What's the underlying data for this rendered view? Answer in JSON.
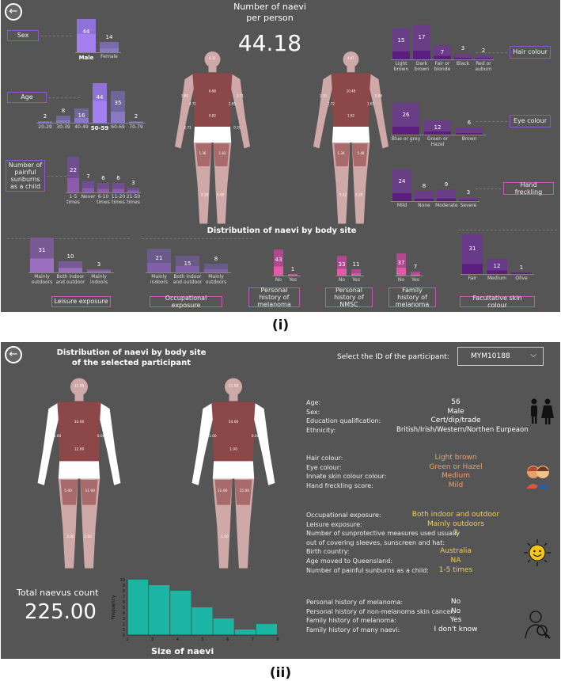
{
  "panel1": {
    "caption": "(i)",
    "title_line1": "Number of naevi",
    "title_line2": "per person",
    "big_number": "44.18",
    "body_site_title": "Distribution of naevi by body site",
    "front_values": [
      "6.11",
      "6.68",
      "4.71",
      "2.65",
      "0.82",
      "1.36",
      "1.83",
      "3.18",
      "4.58",
      "3.80",
      "2.71",
      "2.71",
      "0.31",
      "0.25"
    ],
    "back_values": [
      "4.87",
      "10.48",
      "1.72",
      "1.63",
      "1.62",
      "1.34",
      "5.48",
      "5.32",
      "2.28",
      "2.15",
      "0.06"
    ],
    "sex": {
      "label": "Sex",
      "categories": [
        "Male",
        "Female"
      ],
      "values": [
        44,
        14
      ],
      "selected": "Male"
    },
    "age": {
      "label": "Age",
      "categories": [
        "20-29",
        "30-39",
        "40-49",
        "50-59",
        "60-69",
        "70-79"
      ],
      "values": [
        2,
        8,
        16,
        44,
        35,
        2
      ],
      "selected": "50-59"
    },
    "sunburns": {
      "label": "Number of painful sunburns as a child",
      "categories": [
        "1-5 times",
        "Never",
        "6-10 times",
        "11-20 times",
        "21-50 times"
      ],
      "values": [
        22,
        7,
        6,
        6,
        3
      ]
    },
    "hair": {
      "label": "Hair colour",
      "categories": [
        "Light brown",
        "Dark brown",
        "Fair or blonde",
        "Black",
        "Red or auburn"
      ],
      "values": [
        15,
        17,
        7,
        3,
        2
      ]
    },
    "eye": {
      "label": "Eye colour",
      "categories": [
        "Blue or grey",
        "Green or Hazel",
        "Brown"
      ],
      "values": [
        26,
        12,
        6
      ]
    },
    "freckling": {
      "label": "Hand freckling",
      "categories": [
        "Mild",
        "None",
        "Moderate",
        "Severe"
      ],
      "values": [
        24,
        8,
        9,
        3
      ]
    },
    "leisure": {
      "label": "Leisure exposure",
      "categories": [
        "Mainly outdoors",
        "Both indoor and outdoor",
        "Mainly indoors"
      ],
      "values": [
        31,
        10,
        3
      ]
    },
    "occupational": {
      "label": "Occupational exposure",
      "categories": [
        "Mainly indoors",
        "Both indoor and outdoor",
        "Mainly outdoors"
      ],
      "values": [
        21,
        15,
        8
      ]
    },
    "melanoma": {
      "label": "Personal history of melanoma",
      "categories": [
        "No",
        "Yes"
      ],
      "values": [
        43,
        1
      ]
    },
    "nmsc": {
      "label": "Personal history of NMSC",
      "categories": [
        "No",
        "Yes"
      ],
      "values": [
        33,
        11
      ]
    },
    "family": {
      "label": "Family history of melanoma",
      "categories": [
        "No",
        "Yes"
      ],
      "values": [
        37,
        7
      ]
    },
    "skin": {
      "label": "Facultative skin colour",
      "categories": [
        "Fair",
        "Medium",
        "Olive"
      ],
      "values": [
        31,
        12,
        1
      ]
    }
  },
  "panel2": {
    "caption": "(ii)",
    "title_line1": "Distribution of naevi by body site",
    "title_line2": "of the selected participant",
    "select_label": "Select the ID of the participant:",
    "select_value": "MYM10188",
    "front_values": [
      "11.00",
      "33.00",
      "0.00",
      "0.00",
      "12.00",
      "5.00",
      "11.00",
      "3.00",
      "1.00"
    ],
    "back_values": [
      "11.00",
      "54.00",
      "51.00",
      "0.00",
      "1.00",
      "11.00",
      "15.00",
      "1.00"
    ],
    "total_label": "Total naevus count",
    "total_value": "225.00",
    "rows_group1": [
      {
        "label": "Age:",
        "value": "56"
      },
      {
        "label": "Sex:",
        "value": "Male"
      },
      {
        "label": "Education qualification:",
        "value": "Cert/dip/trade"
      },
      {
        "label": "Ethnicity:",
        "value": "British/Irish/Western/Northen Eurpeaon"
      }
    ],
    "rows_group2": [
      {
        "label": "Hair colour:",
        "value": "Light brown"
      },
      {
        "label": "Eye colour:",
        "value": "Green or Hazel"
      },
      {
        "label": "Innate skin colour colour:",
        "value": "Medium"
      },
      {
        "label": "Hand freckling score:",
        "value": "Mild"
      }
    ],
    "rows_group3": [
      {
        "label": "Occupational exposure:",
        "value": "Both indoor and outdoor"
      },
      {
        "label": "Leisure exposure:",
        "value": "Mainly outdoors"
      },
      {
        "label": "Number of sunprotective measures used usually",
        "value": "2"
      },
      {
        "label": "out of covering sleeves, sunscreen and hat:",
        "value": ""
      },
      {
        "label": "Birth country:",
        "value": "Australia"
      },
      {
        "label": "Age moved to Queensland:",
        "value": "NA"
      },
      {
        "label": "Number of painful sunburns as a child:",
        "value": "1-5 times"
      }
    ],
    "rows_group4": [
      {
        "label": "Personal history of melanoma:",
        "value": "No"
      },
      {
        "label": "Personal history of non-melanoma skin cancer:",
        "value": "No"
      },
      {
        "label": "Family history of melanoma:",
        "value": "Yes"
      },
      {
        "label": "Family history of many naevi:",
        "value": "I don't know"
      }
    ]
  },
  "chart_data": {
    "type": "bar",
    "title": "Size of naevi",
    "xlabel": "Size of naevi",
    "ylabel": "Frequency",
    "x": [
      2,
      3,
      4,
      5,
      6,
      7,
      8
    ],
    "bin_edges": [
      2,
      3,
      4,
      5,
      6,
      7,
      8
    ],
    "values": [
      10,
      9,
      8,
      5,
      3,
      1,
      2
    ],
    "ylim": [
      0,
      10
    ],
    "xlim": [
      2,
      8
    ],
    "yticks": [
      0,
      1,
      2,
      3,
      4,
      5,
      6,
      7,
      8,
      9,
      10
    ],
    "color": "#1cb5a3"
  },
  "colors": {
    "panel": "#555555",
    "lavender": "#9b86c8",
    "purple": "#6b3a8a",
    "pink": "#e05aa8",
    "teal": "#1cb5a3",
    "orange": "#f2a06a",
    "yellow": "#f0d24a"
  }
}
